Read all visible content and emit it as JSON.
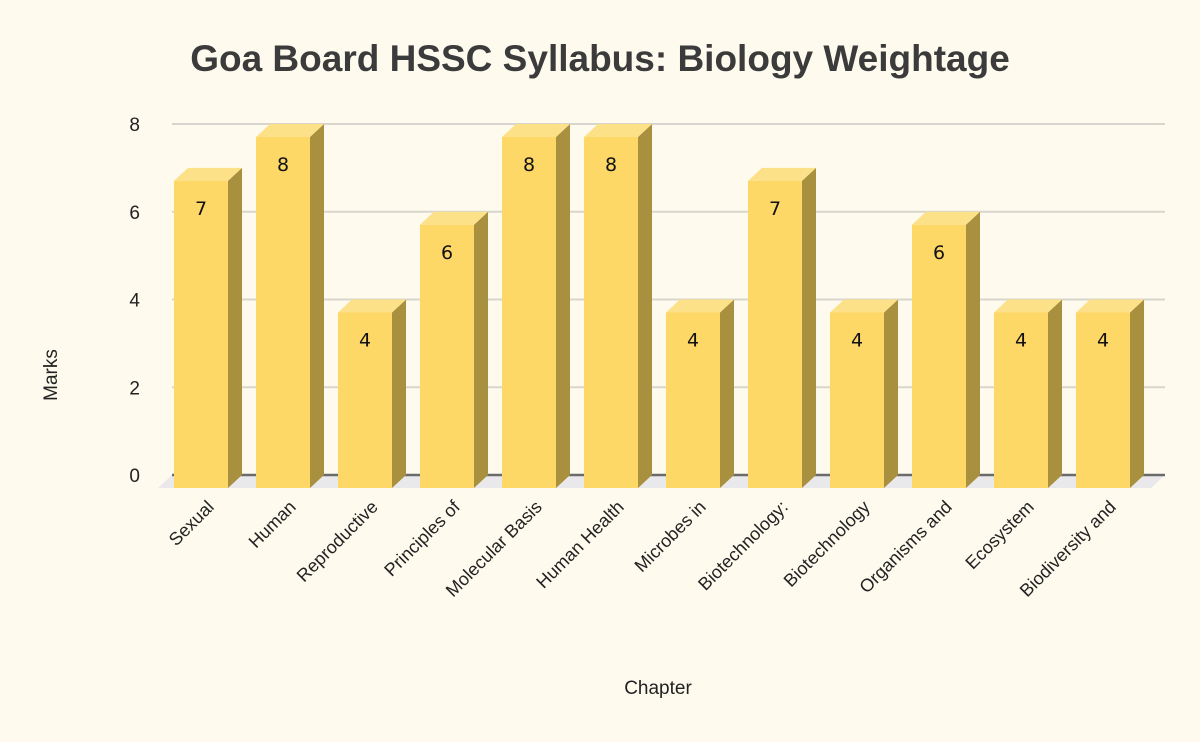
{
  "chart_data": {
    "type": "bar",
    "style": "3d-column",
    "title": "Goa Board HSSC Syllabus: Biology Weightage",
    "xlabel": "Chapter",
    "ylabel": "Marks",
    "ylim": [
      0,
      8
    ],
    "yticks": [
      0,
      2,
      4,
      6,
      8
    ],
    "grid": true,
    "legend": null,
    "categories": [
      "Sexual",
      "Human",
      "Reproductive",
      "Principles of",
      "Molecular Basis",
      "Human Health",
      "Microbes in",
      "Biotechnology:",
      "Biotechnology",
      "Organisms and",
      "Ecosystem",
      "Biodiversity and"
    ],
    "values": [
      7,
      8,
      4,
      6,
      8,
      8,
      4,
      7,
      4,
      6,
      4,
      4
    ],
    "data_labels": true
  },
  "colors": {
    "background": "#fefaee",
    "bar_front": "#fdd866",
    "bar_side": "#a8903f",
    "bar_top": "#fde189",
    "grid": "#d8d6cc",
    "axis": "#6b6b6b",
    "floor": "#e9e8ea",
    "text": "#222222",
    "title": "#3b3b3b"
  }
}
